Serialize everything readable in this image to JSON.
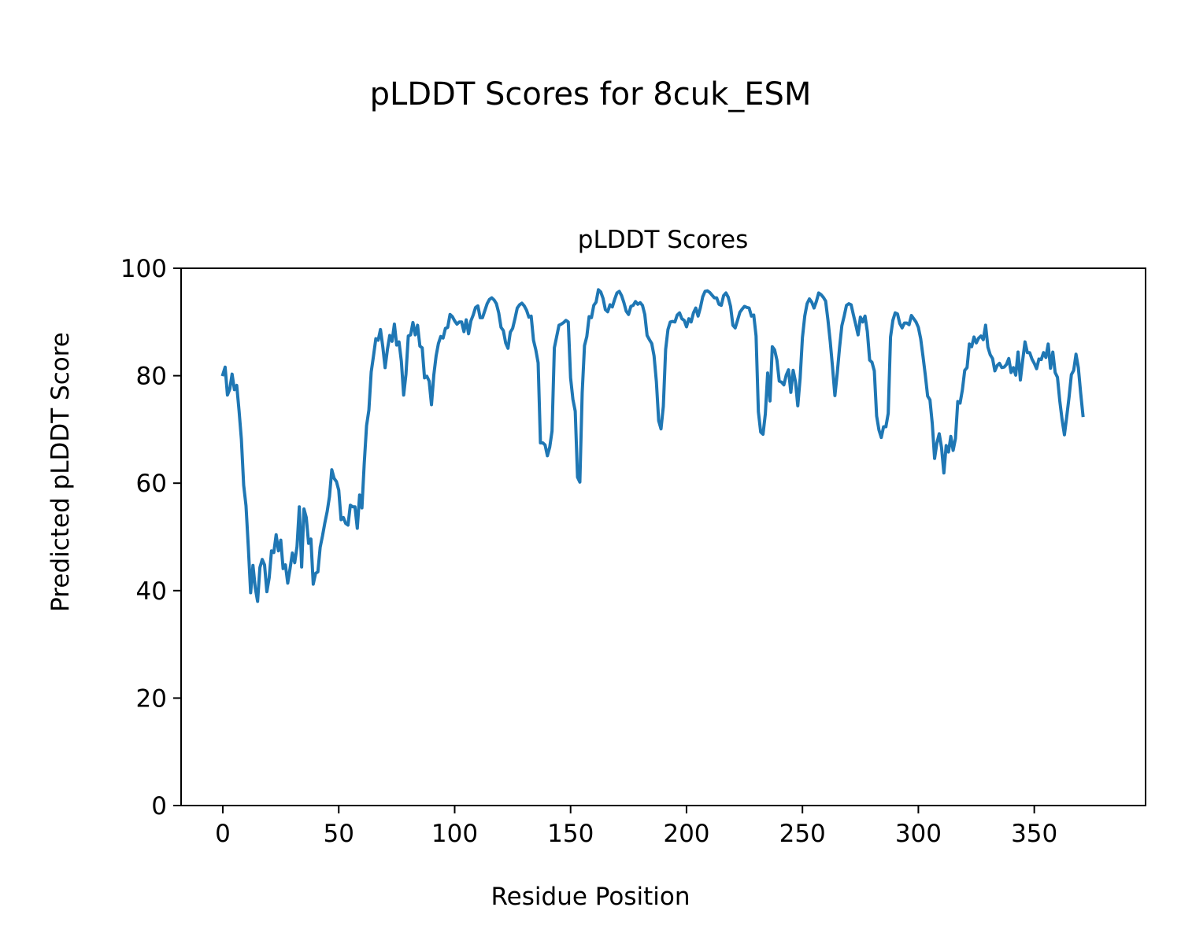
{
  "figure": {
    "suptitle": "pLDDT Scores for 8cuk_ESM"
  },
  "chart_data": {
    "type": "line",
    "title": "pLDDT Scores",
    "xlabel": "Residue Position",
    "ylabel": "Predicted pLDDT Score",
    "xlim": [
      -18,
      398
    ],
    "ylim": [
      0,
      100
    ],
    "xticks": [
      0,
      50,
      100,
      150,
      200,
      250,
      300,
      350
    ],
    "yticks": [
      0,
      20,
      40,
      60,
      80,
      100
    ],
    "grid": false,
    "line_color": "#1f77b4",
    "series": [
      {
        "name": "",
        "x_start": 0,
        "x_step": 1,
        "values": [
          80.2,
          81.6,
          76.4,
          77.5,
          80.3,
          77.4,
          78.2,
          73.5,
          68.2,
          59.6,
          55.8,
          48.1,
          39.6,
          44.7,
          40.5,
          38.0,
          44.3,
          45.8,
          44.8,
          39.8,
          42.4,
          47.4,
          47.1,
          50.4,
          47.4,
          49.4,
          44.1,
          44.8,
          41.4,
          44.1,
          47.0,
          45.2,
          48.2,
          55.6,
          44.4,
          55.2,
          53.6,
          48.8,
          49.6,
          41.2,
          43.2,
          43.5,
          48.1,
          50.2,
          52.6,
          54.7,
          57.5,
          62.5,
          60.9,
          60.3,
          58.7,
          53.2,
          53.6,
          52.5,
          52.2,
          55.9,
          55.6,
          55.6,
          51.6,
          57.8,
          55.4,
          63.7,
          70.7,
          73.6,
          80.7,
          83.7,
          86.9,
          86.6,
          88.6,
          85.4,
          81.5,
          84.9,
          87.5,
          86.4,
          89.6,
          85.7,
          86.3,
          82.7,
          76.4,
          80.3,
          87.4,
          87.6,
          89.9,
          87.6,
          89.4,
          85.5,
          85.2,
          79.6,
          79.9,
          79.0,
          74.6,
          80.1,
          83.7,
          86.0,
          87.3,
          87.0,
          88.8,
          89.0,
          91.4,
          91.0,
          90.2,
          89.6,
          90.0,
          90.0,
          88.2,
          90.4,
          87.8,
          90.2,
          91.3,
          92.7,
          93.0,
          90.8,
          90.8,
          92.1,
          93.4,
          94.2,
          94.5,
          94.1,
          93.4,
          91.7,
          89.0,
          88.4,
          86.1,
          85.1,
          88.1,
          88.8,
          90.6,
          92.6,
          93.2,
          93.5,
          93.0,
          92.2,
          90.9,
          91.1,
          86.6,
          84.8,
          82.4,
          67.5,
          67.5,
          67.1,
          65.1,
          66.7,
          69.7,
          85.2,
          87.3,
          89.4,
          89.6,
          89.9,
          90.3,
          90.0,
          79.6,
          75.6,
          73.4,
          61.1,
          60.2,
          76.8,
          85.6,
          87.3,
          91.0,
          90.8,
          93.1,
          93.7,
          96.0,
          95.6,
          94.4,
          92.3,
          91.9,
          93.2,
          92.8,
          94.2,
          95.4,
          95.7,
          94.9,
          93.6,
          92.0,
          91.4,
          92.9,
          93.1,
          93.8,
          93.3,
          93.6,
          93.1,
          91.4,
          87.5,
          86.7,
          86.0,
          83.7,
          78.9,
          71.6,
          70.1,
          74.3,
          84.9,
          88.6,
          90.0,
          90.1,
          90.0,
          91.3,
          91.7,
          90.6,
          90.3,
          89.1,
          90.6,
          90.0,
          91.7,
          92.6,
          91.1,
          92.7,
          94.7,
          95.7,
          95.8,
          95.5,
          95.0,
          94.5,
          94.5,
          93.3,
          93.1,
          94.9,
          95.4,
          94.6,
          92.9,
          89.4,
          88.9,
          90.3,
          91.8,
          92.4,
          92.9,
          92.7,
          92.6,
          91.1,
          91.3,
          87.4,
          73.3,
          69.5,
          69.1,
          72.9,
          80.5,
          75.3,
          85.4,
          84.8,
          82.9,
          79.0,
          78.8,
          78.3,
          80.1,
          81.1,
          76.9,
          81.0,
          78.9,
          74.4,
          79.5,
          87.1,
          91.1,
          93.4,
          94.3,
          93.7,
          92.6,
          93.8,
          95.4,
          95.1,
          94.6,
          93.9,
          90.4,
          86.3,
          81.5,
          76.3,
          80.4,
          85.2,
          89.3,
          91.1,
          93.1,
          93.4,
          93.2,
          91.3,
          89.5,
          87.6,
          90.9,
          90.0,
          91.1,
          88.2,
          82.9,
          82.5,
          80.9,
          72.5,
          69.9,
          68.5,
          70.5,
          70.5,
          73.0,
          87.2,
          90.3,
          91.7,
          91.5,
          89.7,
          88.9,
          89.8,
          89.8,
          89.5,
          91.2,
          90.6,
          90.0,
          89.0,
          86.9,
          83.6,
          80.1,
          76.2,
          75.5,
          71.1,
          64.6,
          67.5,
          69.2,
          66.6,
          61.9,
          67.0,
          65.8,
          68.7,
          66.1,
          68.3,
          75.2,
          74.9,
          77.4,
          81.0,
          81.5,
          85.9,
          85.4,
          87.2,
          86.1,
          87.0,
          87.4,
          86.7,
          89.4,
          85.3,
          83.9,
          83.2,
          80.9,
          81.9,
          82.3,
          81.5,
          81.6,
          82.1,
          83.2,
          80.6,
          81.5,
          80.1,
          84.4,
          79.2,
          82.9,
          86.3,
          84.3,
          84.3,
          83.1,
          82.3,
          81.3,
          83.1,
          83.0,
          84.3,
          83.4,
          85.9,
          81.4,
          84.4,
          80.6,
          79.7,
          75.3,
          71.8,
          69.0,
          72.4,
          76.0,
          80.2,
          81.0,
          84.0,
          81.5,
          76.8,
          72.6
        ]
      }
    ]
  }
}
